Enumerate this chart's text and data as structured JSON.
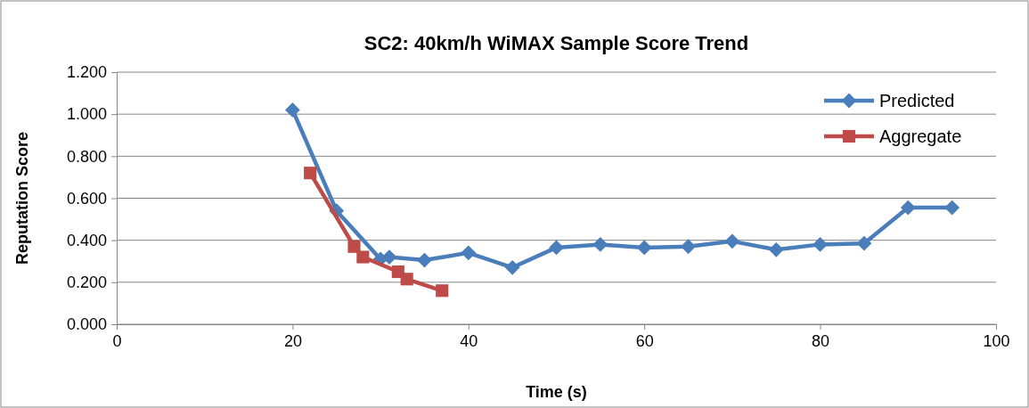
{
  "chart_data": {
    "type": "line",
    "title": "SC2: 40km/h WiMAX Sample Score Trend",
    "xlabel": "Time (s)",
    "ylabel": "Reputation Score",
    "series": [
      {
        "name": "Predicted",
        "color": "#4a7ebb",
        "marker": "diamond",
        "x": [
          20,
          25,
          30,
          31,
          35,
          40,
          45,
          50,
          55,
          60,
          65,
          70,
          75,
          80,
          85,
          90,
          95
        ],
        "values": [
          1.02,
          0.54,
          0.31,
          0.32,
          0.305,
          0.34,
          0.27,
          0.365,
          0.38,
          0.365,
          0.37,
          0.395,
          0.355,
          0.38,
          0.385,
          0.555,
          0.555
        ]
      },
      {
        "name": "Aggregate",
        "color": "#be4b48",
        "marker": "square",
        "x": [
          22,
          27,
          28,
          32,
          33,
          37
        ],
        "values": [
          0.72,
          0.37,
          0.32,
          0.25,
          0.215,
          0.16
        ]
      }
    ],
    "xlim": [
      0,
      100
    ],
    "xticks": [
      0,
      20,
      40,
      60,
      80,
      100
    ],
    "ylim": [
      0,
      1.2
    ],
    "yticks": [
      {
        "value": 0,
        "label": "0.000"
      },
      {
        "value": 0.2,
        "label": "0.200"
      },
      {
        "value": 0.4,
        "label": "0.400"
      },
      {
        "value": 0.6,
        "label": "0.600"
      },
      {
        "value": 0.8,
        "label": "0.800"
      },
      {
        "value": 1,
        "label": "1.000"
      },
      {
        "value": 1.2,
        "label": "1.200"
      }
    ],
    "grid": "y",
    "legend": "top right",
    "line_style": "solid"
  }
}
